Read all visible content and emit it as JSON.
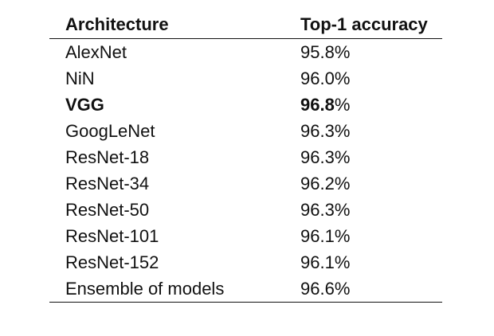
{
  "table": {
    "headers": [
      "Architecture",
      "Top-1 accuracy"
    ],
    "rows": [
      {
        "architecture": "AlexNet",
        "accuracy": "95.8",
        "unit": "%",
        "bold": false
      },
      {
        "architecture": "NiN",
        "accuracy": "96.0",
        "unit": "%",
        "bold": false
      },
      {
        "architecture": "VGG",
        "accuracy": "96.8",
        "unit": "%",
        "bold": true
      },
      {
        "architecture": "GoogLeNet",
        "accuracy": "96.3",
        "unit": "%",
        "bold": false
      },
      {
        "architecture": "ResNet-18",
        "accuracy": "96.3",
        "unit": "%",
        "bold": false
      },
      {
        "architecture": "ResNet-34",
        "accuracy": "96.2",
        "unit": "%",
        "bold": false
      },
      {
        "architecture": "ResNet-50",
        "accuracy": "96.3",
        "unit": "%",
        "bold": false
      },
      {
        "architecture": "ResNet-101",
        "accuracy": "96.1",
        "unit": "%",
        "bold": false
      },
      {
        "architecture": "ResNet-152",
        "accuracy": "96.1",
        "unit": "%",
        "bold": false
      },
      {
        "architecture": "Ensemble of models",
        "accuracy": "96.6",
        "unit": "%",
        "bold": false
      }
    ]
  }
}
